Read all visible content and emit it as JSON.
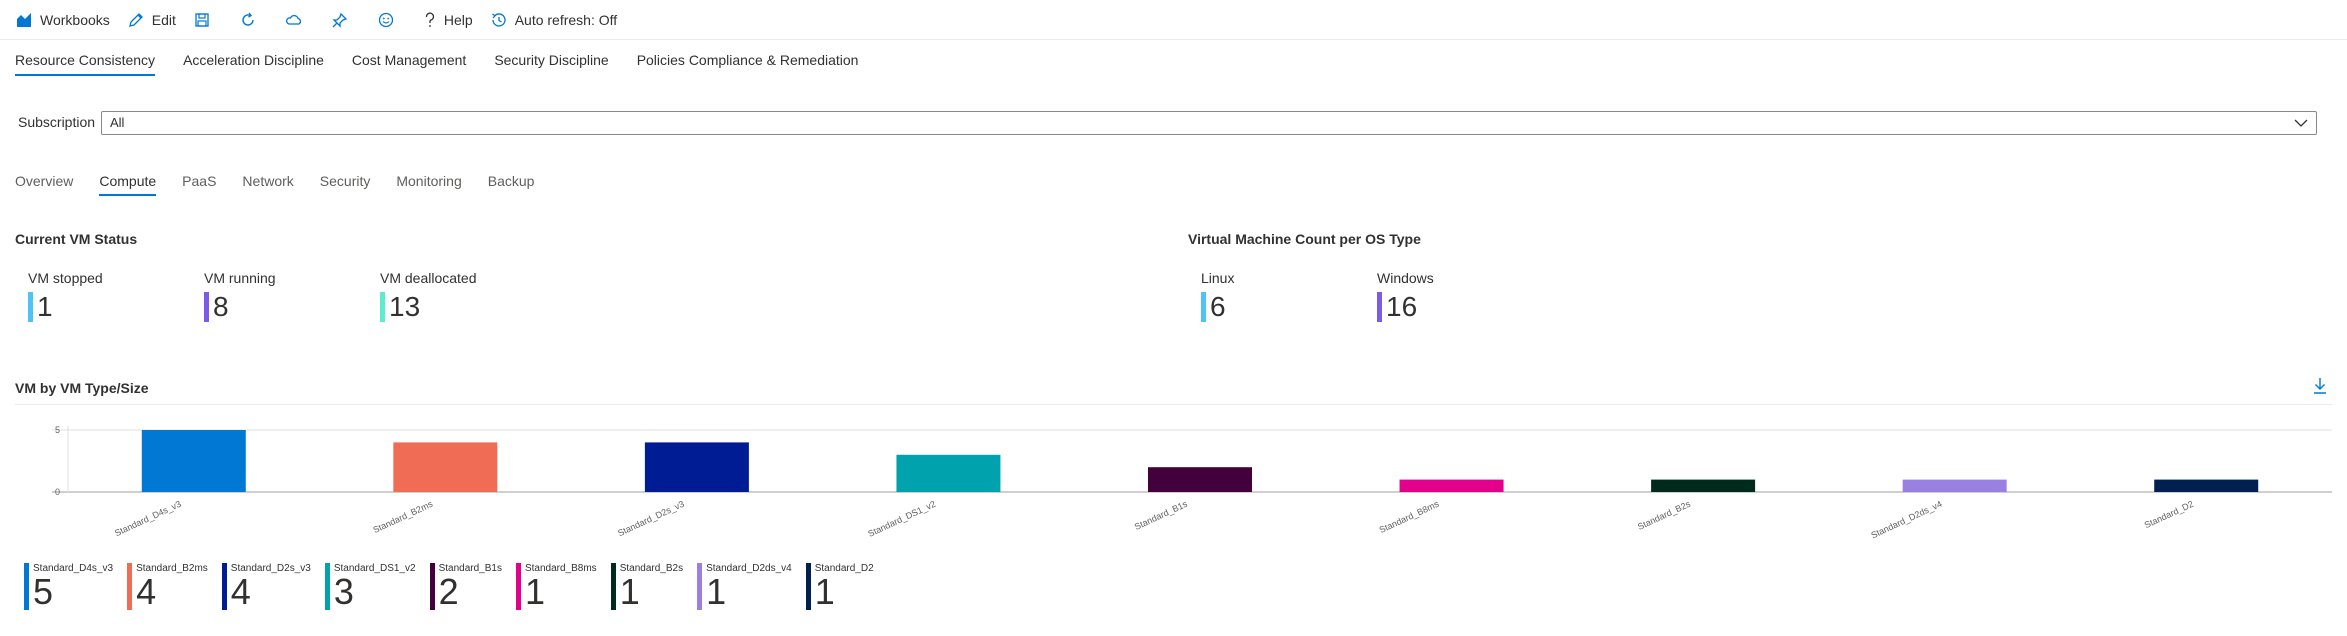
{
  "toolbar": {
    "workbooks_label": "Workbooks",
    "edit_label": "Edit",
    "help_label": "Help",
    "auto_refresh_label": "Auto refresh: Off"
  },
  "top_tabs": [
    "Resource Consistency",
    "Acceleration Discipline",
    "Cost Management",
    "Security Discipline",
    "Policies Compliance & Remediation"
  ],
  "subscription": {
    "label": "Subscription",
    "value": "All"
  },
  "section_tabs": [
    "Overview",
    "Compute",
    "PaaS",
    "Network",
    "Security",
    "Monitoring",
    "Backup"
  ],
  "vm_status": {
    "title": "Current VM Status",
    "tiles": [
      {
        "label": "VM stopped",
        "value": "1",
        "color": "#4fc3f7"
      },
      {
        "label": "VM running",
        "value": "8",
        "color": "#7b5be8"
      },
      {
        "label": "VM deallocated",
        "value": "13",
        "color": "#5cedd1"
      }
    ]
  },
  "os_count": {
    "title": "Virtual Machine Count per OS Type",
    "tiles": [
      {
        "label": "Linux",
        "value": "6",
        "color": "#4fc3f7"
      },
      {
        "label": "Windows",
        "value": "16",
        "color": "#7b5be8"
      }
    ]
  },
  "chart_title": "VM by VM Type/Size",
  "chart_data": {
    "type": "bar",
    "categories": [
      "Standard_D4s_v3",
      "Standard_B2ms",
      "Standard_D2s_v3",
      "Standard_DS1_v2",
      "Standard_B1s",
      "Standard_B8ms",
      "Standard_B2s",
      "Standard_D2ds_v4",
      "Standard_D2"
    ],
    "values": [
      5,
      4,
      4,
      3,
      2,
      1,
      1,
      1,
      1
    ],
    "colors": [
      "#0078d4",
      "#f16c55",
      "#001c94",
      "#00a3ad",
      "#42003d",
      "#e3008c",
      "#002b1c",
      "#9a80e0",
      "#002050"
    ],
    "yticks": [
      0,
      5
    ],
    "ylim": [
      0,
      5
    ],
    "grid": true
  }
}
